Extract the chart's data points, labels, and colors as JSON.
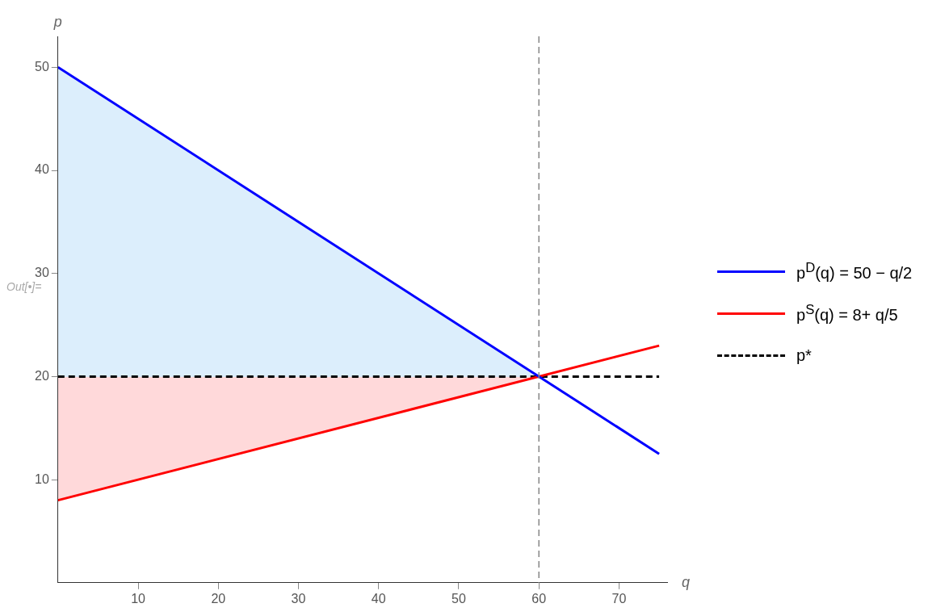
{
  "chart_data": {
    "type": "line",
    "xlabel": "q",
    "ylabel": "p",
    "xlim": [
      0,
      76
    ],
    "ylim": [
      0,
      53
    ],
    "xticks": [
      10,
      20,
      30,
      40,
      50,
      60,
      70
    ],
    "yticks": [
      10,
      20,
      30,
      40,
      50
    ],
    "grid": false,
    "legend": "right",
    "marker": "none",
    "series": [
      {
        "type": "area",
        "color": "#dceefc",
        "x": [
          0,
          60,
          0
        ],
        "values": [
          50,
          20,
          20
        ]
      },
      {
        "type": "area",
        "color": "#ffd9da",
        "x": [
          0,
          60,
          0
        ],
        "values": [
          20,
          20,
          8
        ]
      },
      {
        "name": "p$^{D}$(q) = 50 − q/2",
        "color": "#0000ff",
        "x": [
          0,
          75
        ],
        "values": [
          50,
          12.5
        ],
        "line_style": "solid"
      },
      {
        "name": "p$^{S}$(q) = 8+ q/5",
        "color": "#ff0000",
        "x": [
          0,
          75
        ],
        "values": [
          8,
          23
        ],
        "line_style": "solid"
      },
      {
        "name": "p*",
        "color": "#000000",
        "x": [
          0,
          75
        ],
        "values": [
          20,
          20
        ],
        "line_style": "dashed"
      }
    ],
    "ref_lines": [
      {
        "axis": "x",
        "value": 60,
        "color": "#888888",
        "line_style": "dashed"
      }
    ],
    "annotations": [
      "Out[•]="
    ]
  }
}
